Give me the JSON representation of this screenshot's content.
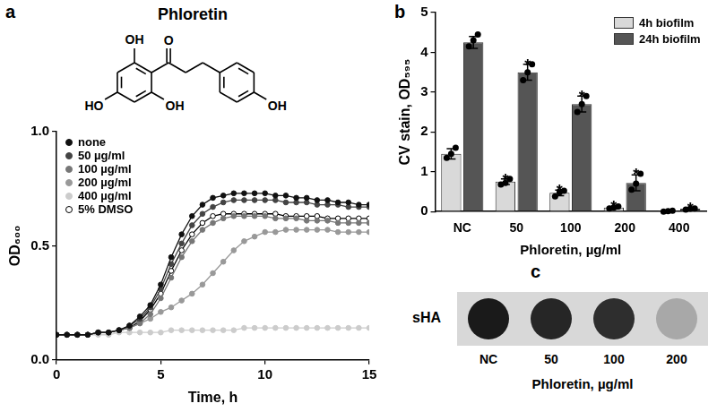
{
  "panel_labels": [
    "a",
    "b",
    "c"
  ],
  "structure": {
    "title": "Phloretin",
    "atom_labels": [
      "OH",
      "O",
      "HO",
      "OH",
      "OH"
    ]
  },
  "chart_data": [
    {
      "type": "line",
      "x_label": "Time, h",
      "y_label": "OD₆₀₀",
      "x": [
        0,
        0.5,
        1,
        1.5,
        2,
        2.5,
        3,
        3.5,
        4,
        4.5,
        5,
        5.5,
        6,
        6.5,
        7,
        7.5,
        8,
        8.5,
        9,
        9.5,
        10,
        10.5,
        11,
        11.5,
        12,
        12.5,
        13,
        13.5,
        14,
        14.5,
        15
      ],
      "xlim": [
        0,
        15
      ],
      "xticks": [
        0,
        5,
        10,
        15
      ],
      "ylim": [
        0,
        1
      ],
      "yticks": [
        {
          "value": 0,
          "label": "0.0"
        },
        0.5,
        {
          "value": 1,
          "label": "1.0"
        }
      ],
      "grid": false,
      "legend": "top-left",
      "series": [
        {
          "name": "none",
          "color": "#111111",
          "marker": "circle",
          "values": [
            0.11,
            0.11,
            0.11,
            0.11,
            0.12,
            0.12,
            0.13,
            0.15,
            0.19,
            0.24,
            0.33,
            0.45,
            0.55,
            0.63,
            0.68,
            0.71,
            0.72,
            0.73,
            0.73,
            0.73,
            0.73,
            0.72,
            0.72,
            0.71,
            0.71,
            0.7,
            0.7,
            0.69,
            0.69,
            0.68,
            0.68
          ]
        },
        {
          "name": "50 µg/ml",
          "color": "#444444",
          "marker": "circle",
          "values": [
            0.11,
            0.11,
            0.11,
            0.11,
            0.12,
            0.12,
            0.13,
            0.15,
            0.18,
            0.23,
            0.31,
            0.42,
            0.51,
            0.59,
            0.64,
            0.67,
            0.69,
            0.7,
            0.7,
            0.7,
            0.7,
            0.7,
            0.69,
            0.69,
            0.69,
            0.68,
            0.68,
            0.68,
            0.67,
            0.67,
            0.67
          ]
        },
        {
          "name": "100 µg/ml",
          "color": "#777777",
          "marker": "circle",
          "values": [
            0.11,
            0.11,
            0.11,
            0.11,
            0.12,
            0.12,
            0.13,
            0.14,
            0.16,
            0.2,
            0.27,
            0.36,
            0.45,
            0.52,
            0.57,
            0.6,
            0.62,
            0.63,
            0.63,
            0.63,
            0.63,
            0.62,
            0.62,
            0.62,
            0.61,
            0.61,
            0.61,
            0.6,
            0.6,
            0.6,
            0.6
          ]
        },
        {
          "name": "200 µg/ml",
          "color": "#999999",
          "marker": "circle",
          "values": [
            0.11,
            0.11,
            0.11,
            0.11,
            0.12,
            0.12,
            0.13,
            0.14,
            0.16,
            0.18,
            0.21,
            0.23,
            0.26,
            0.29,
            0.33,
            0.38,
            0.43,
            0.48,
            0.52,
            0.54,
            0.56,
            0.56,
            0.57,
            0.57,
            0.57,
            0.57,
            0.57,
            0.56,
            0.56,
            0.56,
            0.56
          ]
        },
        {
          "name": "400 µg/ml",
          "color": "#cccccc",
          "marker": "circle",
          "values": [
            0.11,
            0.11,
            0.11,
            0.11,
            0.11,
            0.11,
            0.12,
            0.12,
            0.12,
            0.12,
            0.12,
            0.13,
            0.13,
            0.13,
            0.13,
            0.13,
            0.13,
            0.13,
            0.14,
            0.14,
            0.14,
            0.14,
            0.14,
            0.14,
            0.14,
            0.14,
            0.14,
            0.14,
            0.14,
            0.14,
            0.14
          ]
        },
        {
          "name": "5% DMSO",
          "color": "#000000",
          "marker": "open_circle",
          "values": [
            0.11,
            0.11,
            0.11,
            0.11,
            0.12,
            0.12,
            0.13,
            0.14,
            0.17,
            0.22,
            0.29,
            0.39,
            0.48,
            0.55,
            0.6,
            0.63,
            0.64,
            0.64,
            0.64,
            0.64,
            0.64,
            0.64,
            0.63,
            0.63,
            0.63,
            0.63,
            0.62,
            0.62,
            0.62,
            0.62,
            0.62
          ]
        }
      ]
    },
    {
      "type": "bar",
      "x_label": "Phloretin, µg/ml",
      "y_label": "CV stain, OD₅₉₅",
      "categories": [
        "NC",
        "50",
        "100",
        "200",
        "400"
      ],
      "ylim": [
        0,
        5
      ],
      "yticks": [
        0,
        1,
        2,
        3,
        4,
        5
      ],
      "grid": false,
      "legend": "top-right",
      "series": [
        {
          "name": "4h biofilm",
          "color": "#d9d9d9",
          "values": [
            1.45,
            0.75,
            0.47,
            0.1,
            0.01
          ],
          "errors": [
            0.13,
            0.07,
            0.07,
            0.03,
            0.01
          ],
          "points": [
            [
              1.35,
              1.45,
              1.6
            ],
            [
              0.68,
              0.72,
              0.82
            ],
            [
              0.38,
              0.48,
              0.52
            ],
            [
              0.08,
              0.1,
              0.13
            ],
            [
              0,
              0.01,
              0.02
            ]
          ],
          "annotations": [
            null,
            "*",
            "*",
            "*",
            null
          ]
        },
        {
          "name": "24h biofilm",
          "color": "#555555",
          "values": [
            4.25,
            3.5,
            2.7,
            0.72,
            0.07
          ],
          "errors": [
            0.15,
            0.2,
            0.2,
            0.2,
            0.02
          ],
          "points": [
            [
              4.15,
              4.3,
              4.45
            ],
            [
              3.3,
              3.5,
              3.7
            ],
            [
              2.5,
              2.7,
              2.9
            ],
            [
              0.55,
              0.7,
              0.95
            ],
            [
              0.05,
              0.07,
              0.08
            ]
          ],
          "annotations": [
            null,
            "*",
            "*",
            "*",
            "*"
          ]
        }
      ]
    }
  ],
  "blot": {
    "row_label": "sHA",
    "categories": [
      "NC",
      "50",
      "100",
      "200"
    ],
    "colors": [
      "#1a1a1a",
      "#262626",
      "#2e2e2e",
      "#a8a8a8"
    ],
    "x_label": "Phloretin, µg/ml"
  }
}
